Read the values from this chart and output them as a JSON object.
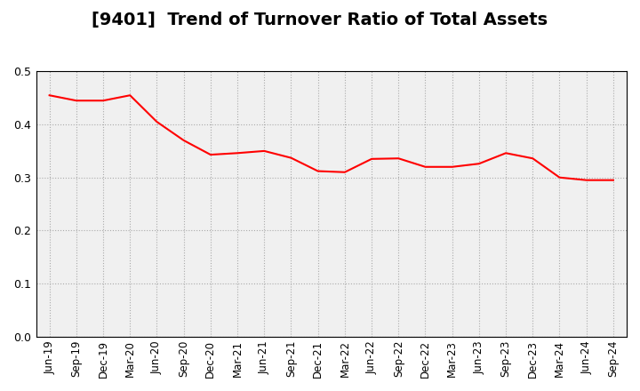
{
  "title": "[9401]  Trend of Turnover Ratio of Total Assets",
  "line_color": "#ff0000",
  "line_width": 1.5,
  "background_color": "#ffffff",
  "plot_bg_color": "#f0f0f0",
  "grid_color": "#aaaaaa",
  "grid_style": ":",
  "ylim": [
    0.0,
    0.5
  ],
  "yticks": [
    0.0,
    0.1,
    0.2,
    0.3,
    0.4,
    0.5
  ],
  "labels": [
    "Jun-19",
    "Sep-19",
    "Dec-19",
    "Mar-20",
    "Jun-20",
    "Sep-20",
    "Dec-20",
    "Mar-21",
    "Jun-21",
    "Sep-21",
    "Dec-21",
    "Mar-22",
    "Jun-22",
    "Sep-22",
    "Dec-22",
    "Mar-23",
    "Jun-23",
    "Sep-23",
    "Dec-23",
    "Mar-24",
    "Jun-24",
    "Sep-24"
  ],
  "values": [
    0.455,
    0.445,
    0.445,
    0.455,
    0.405,
    0.37,
    0.343,
    0.346,
    0.35,
    0.337,
    0.312,
    0.31,
    0.335,
    0.336,
    0.32,
    0.32,
    0.326,
    0.346,
    0.336,
    0.3,
    0.295,
    0.295
  ],
  "title_fontsize": 14,
  "tick_fontsize": 8.5,
  "ytick_fontsize": 9
}
